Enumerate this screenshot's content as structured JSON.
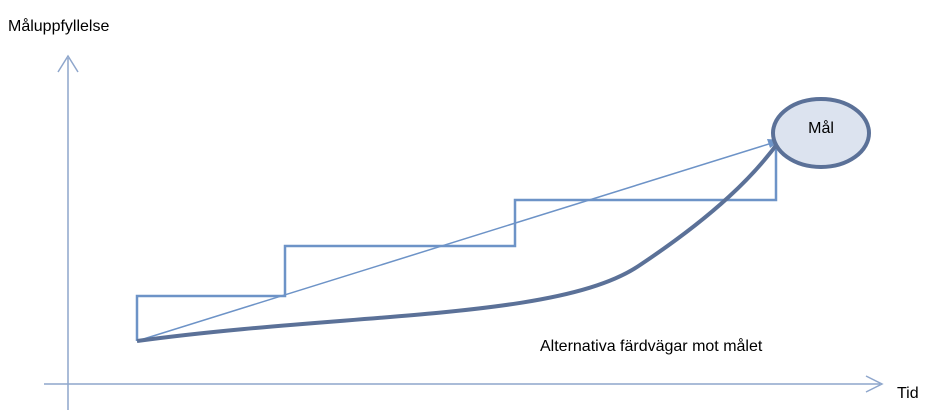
{
  "y_axis_label": "Måluppfyllelse",
  "x_axis_label": "Tid",
  "goal_label": "Mål",
  "caption": "Alternativa färdvägar mot målet",
  "colors": {
    "axis": "#8ea6cc",
    "step_path": "#6d93c7",
    "straight_path": "#6d93c7",
    "curve_path": "#5b7198",
    "goal_fill": "#dce3ef",
    "goal_stroke": "#5b7198"
  }
}
